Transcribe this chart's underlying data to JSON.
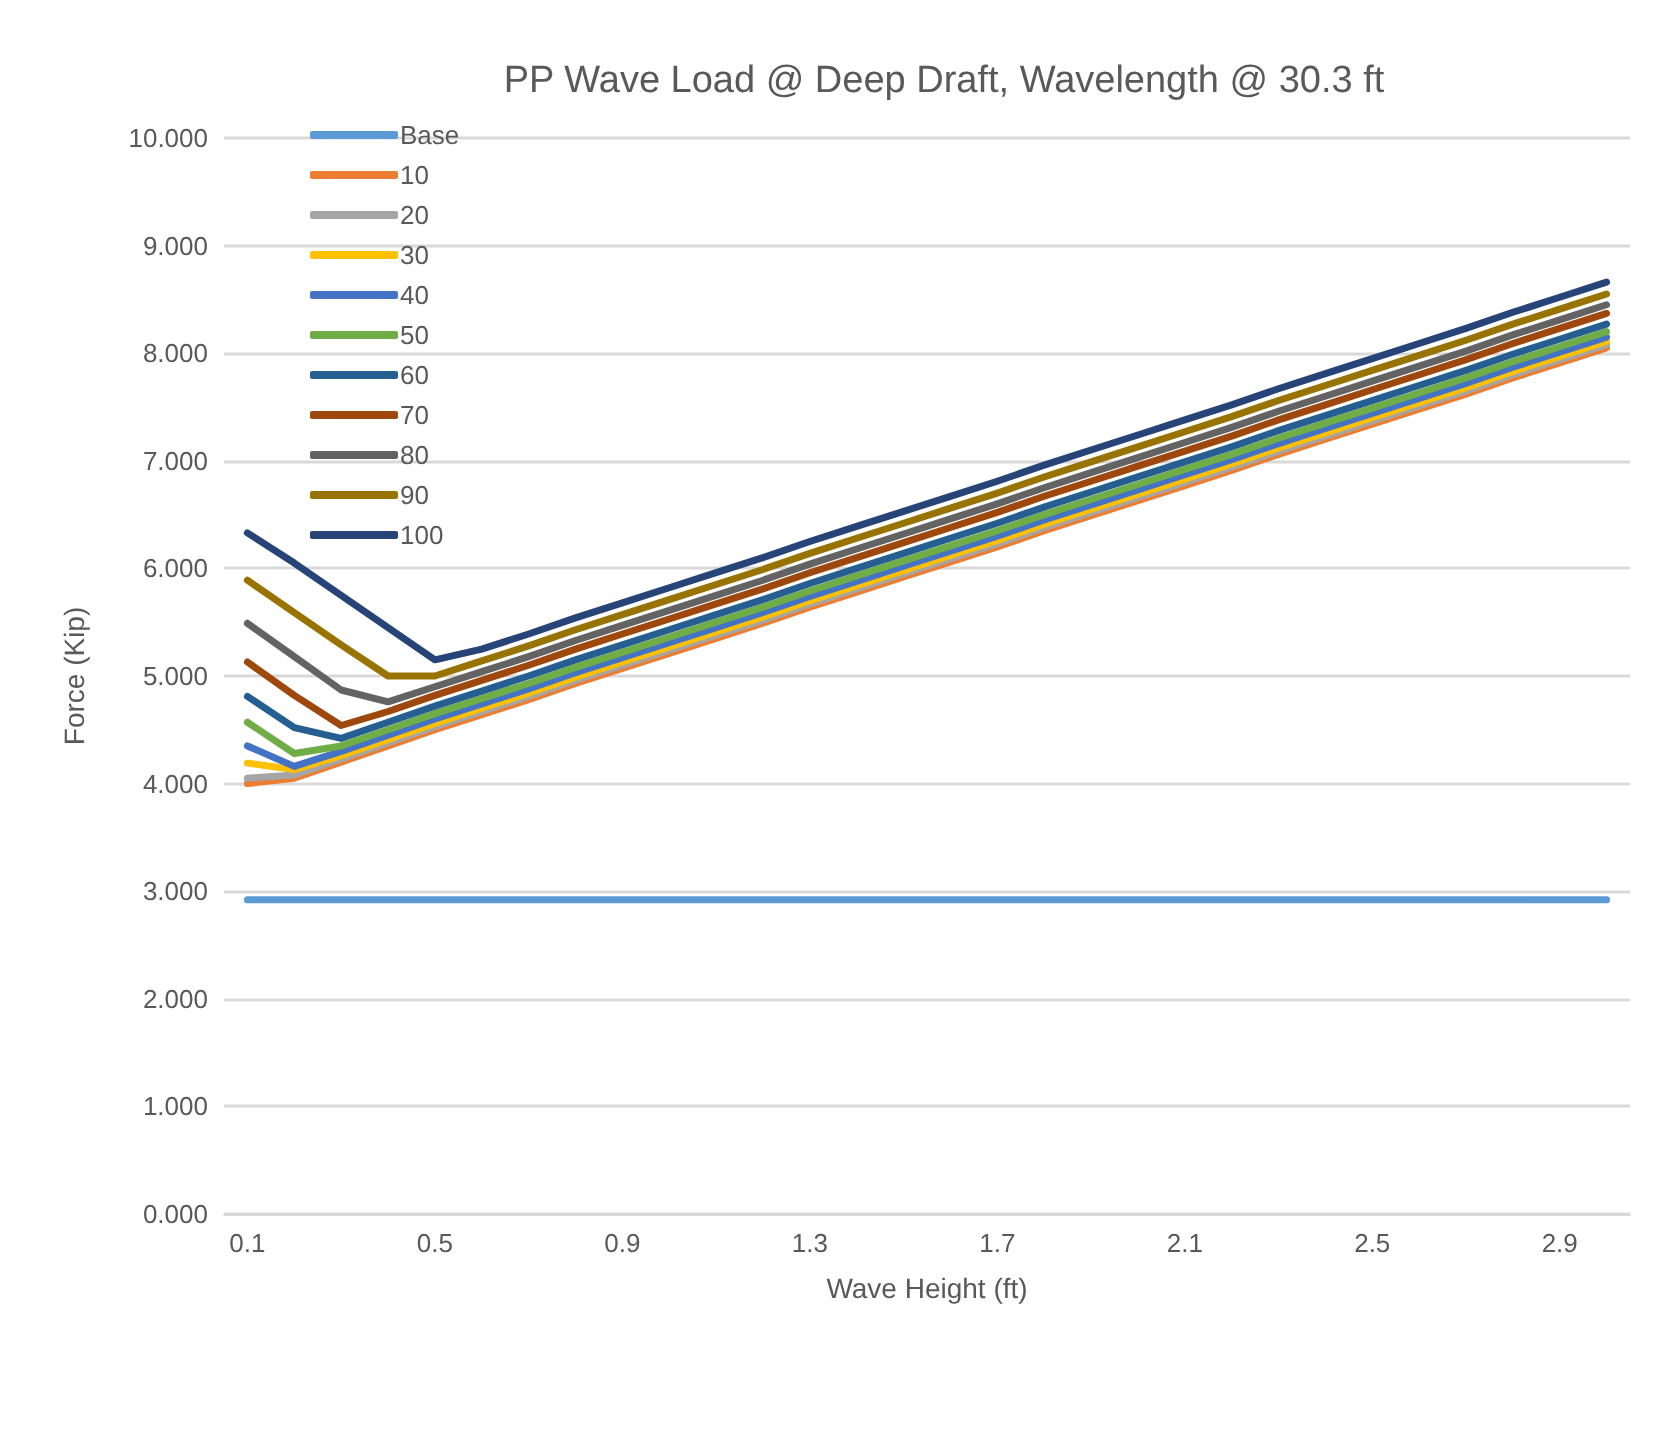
{
  "chart_data": {
    "type": "line",
    "title": "PP Wave Load @ Deep Draft, Wavelength @ 30.3 ft",
    "xlabel": "Wave Height (ft)",
    "ylabel": "Force (Kip)",
    "categories": [
      "0.1",
      null,
      null,
      null,
      "0.5",
      null,
      null,
      null,
      "0.9",
      null,
      null,
      null,
      "1.3",
      null,
      null,
      null,
      "1.7",
      null,
      null,
      null,
      "2.1",
      null,
      null,
      null,
      "2.5",
      null,
      null,
      null,
      "2.9",
      null
    ],
    "ylim": [
      0,
      10
    ],
    "yticks": [
      {
        "value": 0,
        "label": "0.000"
      },
      {
        "value": 1,
        "label": "1.000"
      },
      {
        "value": 2,
        "label": "2.000"
      },
      {
        "value": 3,
        "label": "3.000"
      },
      {
        "value": 4,
        "label": "4.000"
      },
      {
        "value": 5,
        "label": "5.000"
      },
      {
        "value": 6,
        "label": "6.000"
      },
      {
        "value": 7,
        "label": "7.000"
      },
      {
        "value": 8,
        "label": "8.000"
      },
      {
        "value": 9,
        "label": "9.000"
      },
      {
        "value": 10,
        "label": "10.000"
      }
    ],
    "grid": "y",
    "legend": "top left",
    "marker": "none",
    "line_style": "solid",
    "series": [
      {
        "name": "Base",
        "color": "#5b9bd5",
        "values": [
          2.92,
          2.92,
          2.92,
          2.92,
          2.92,
          2.92,
          2.92,
          2.92,
          2.92,
          2.92,
          2.92,
          2.92,
          2.92,
          2.92,
          2.92,
          2.92,
          2.92,
          2.92,
          2.92,
          2.92,
          2.92,
          2.92,
          2.92,
          2.92,
          2.92,
          2.92,
          2.92,
          2.92,
          2.92,
          2.92
        ]
      },
      {
        "name": "10",
        "color": "#ed7d31",
        "values": [
          4.0,
          4.05,
          4.2,
          4.35,
          4.5,
          4.64,
          4.78,
          4.93,
          5.07,
          5.21,
          5.35,
          5.49,
          5.64,
          5.78,
          5.92,
          6.06,
          6.2,
          6.35,
          6.49,
          6.63,
          6.77,
          6.91,
          7.06,
          7.2,
          7.34,
          7.48,
          7.62,
          7.77,
          7.91,
          8.05
        ]
      },
      {
        "name": "20",
        "color": "#a5a5a5",
        "values": [
          4.05,
          4.08,
          4.23,
          4.38,
          4.53,
          4.67,
          4.81,
          4.96,
          5.1,
          5.24,
          5.38,
          5.52,
          5.67,
          5.81,
          5.95,
          6.09,
          6.23,
          6.38,
          6.52,
          6.66,
          6.8,
          6.94,
          7.09,
          7.23,
          7.37,
          7.51,
          7.65,
          7.8,
          7.94,
          8.08
        ]
      },
      {
        "name": "30",
        "color": "#ffc000",
        "values": [
          4.19,
          4.13,
          4.26,
          4.41,
          4.56,
          4.7,
          4.84,
          4.99,
          5.13,
          5.27,
          5.41,
          5.55,
          5.7,
          5.84,
          5.98,
          6.12,
          6.26,
          6.41,
          6.55,
          6.69,
          6.83,
          6.97,
          7.12,
          7.26,
          7.4,
          7.54,
          7.68,
          7.83,
          7.97,
          8.11
        ]
      },
      {
        "name": "40",
        "color": "#4472c4",
        "values": [
          4.35,
          4.16,
          4.3,
          4.45,
          4.6,
          4.74,
          4.88,
          5.03,
          5.17,
          5.31,
          5.45,
          5.59,
          5.74,
          5.88,
          6.02,
          6.16,
          6.3,
          6.45,
          6.59,
          6.73,
          6.87,
          7.01,
          7.16,
          7.3,
          7.44,
          7.58,
          7.72,
          7.87,
          8.01,
          8.15
        ]
      },
      {
        "name": "50",
        "color": "#70ad47",
        "values": [
          4.57,
          4.28,
          4.35,
          4.5,
          4.65,
          4.79,
          4.93,
          5.08,
          5.22,
          5.36,
          5.5,
          5.64,
          5.79,
          5.93,
          6.07,
          6.21,
          6.35,
          6.5,
          6.64,
          6.78,
          6.92,
          7.06,
          7.21,
          7.35,
          7.49,
          7.63,
          7.77,
          7.92,
          8.06,
          8.2
        ]
      },
      {
        "name": "60",
        "color": "#255e91",
        "values": [
          4.81,
          4.52,
          4.42,
          4.57,
          4.72,
          4.86,
          5.0,
          5.15,
          5.29,
          5.43,
          5.57,
          5.71,
          5.86,
          6.0,
          6.14,
          6.28,
          6.42,
          6.57,
          6.71,
          6.85,
          6.99,
          7.13,
          7.28,
          7.42,
          7.56,
          7.7,
          7.84,
          7.99,
          8.13,
          8.27
        ]
      },
      {
        "name": "70",
        "color": "#9e480e",
        "values": [
          5.13,
          4.82,
          4.54,
          4.67,
          4.82,
          4.96,
          5.1,
          5.25,
          5.39,
          5.53,
          5.67,
          5.81,
          5.96,
          6.1,
          6.24,
          6.38,
          6.52,
          6.67,
          6.81,
          6.95,
          7.09,
          7.23,
          7.38,
          7.52,
          7.66,
          7.8,
          7.94,
          8.09,
          8.23,
          8.37
        ]
      },
      {
        "name": "80",
        "color": "#636363",
        "values": [
          5.49,
          5.18,
          4.87,
          4.76,
          4.9,
          5.04,
          5.18,
          5.33,
          5.47,
          5.61,
          5.75,
          5.89,
          6.04,
          6.18,
          6.32,
          6.46,
          6.6,
          6.75,
          6.89,
          7.03,
          7.17,
          7.31,
          7.46,
          7.6,
          7.74,
          7.88,
          8.02,
          8.17,
          8.31,
          8.45
        ]
      },
      {
        "name": "90",
        "color": "#997300",
        "values": [
          5.89,
          5.59,
          5.29,
          5.0,
          5.0,
          5.14,
          5.28,
          5.43,
          5.57,
          5.71,
          5.85,
          5.99,
          6.14,
          6.28,
          6.42,
          6.56,
          6.7,
          6.85,
          6.99,
          7.13,
          7.27,
          7.41,
          7.56,
          7.7,
          7.84,
          7.98,
          8.12,
          8.27,
          8.41,
          8.55
        ]
      },
      {
        "name": "100",
        "color": "#264478",
        "values": [
          6.33,
          6.05,
          5.75,
          5.45,
          5.15,
          5.25,
          5.39,
          5.54,
          5.68,
          5.82,
          5.96,
          6.1,
          6.25,
          6.39,
          6.53,
          6.67,
          6.81,
          6.96,
          7.1,
          7.24,
          7.38,
          7.52,
          7.67,
          7.81,
          7.95,
          8.09,
          8.23,
          8.38,
          8.52,
          8.66
        ]
      }
    ]
  }
}
